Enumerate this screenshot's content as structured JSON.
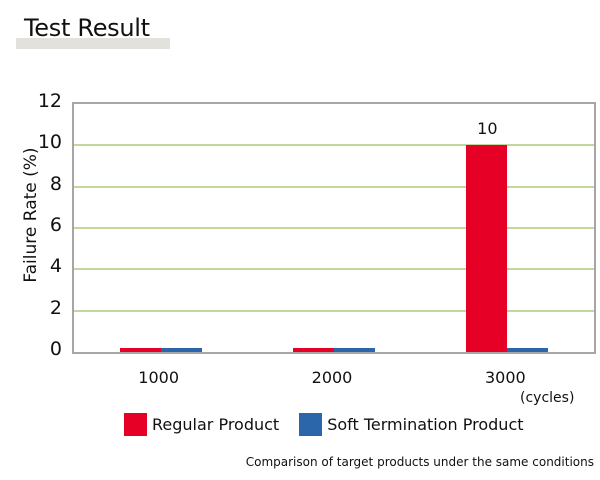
{
  "header": {
    "title": "Test Result"
  },
  "chart_data": {
    "type": "bar",
    "title": "Test Result",
    "categories": [
      "1000",
      "2000",
      "3000"
    ],
    "series": [
      {
        "name": "Regular Product",
        "color": "#e60026",
        "values": [
          0.2,
          0.2,
          10
        ]
      },
      {
        "name": "Soft Termination Product",
        "color": "#2b66aa",
        "values": [
          0.2,
          0.2,
          0.2
        ]
      }
    ],
    "xlabel": "(cycles)",
    "ylabel": "Failure Rate (%)",
    "ylim": [
      0,
      12
    ],
    "yticks": [
      "0",
      "2",
      "4",
      "6",
      "8",
      "10",
      "12"
    ],
    "data_labels": [
      {
        "category": "3000",
        "series": "Regular Product",
        "text": "10"
      }
    ],
    "grid": true,
    "grid_color": "#c3d69b",
    "legend_position": "bottom",
    "caption": "Comparison of target products under the same conditions"
  }
}
